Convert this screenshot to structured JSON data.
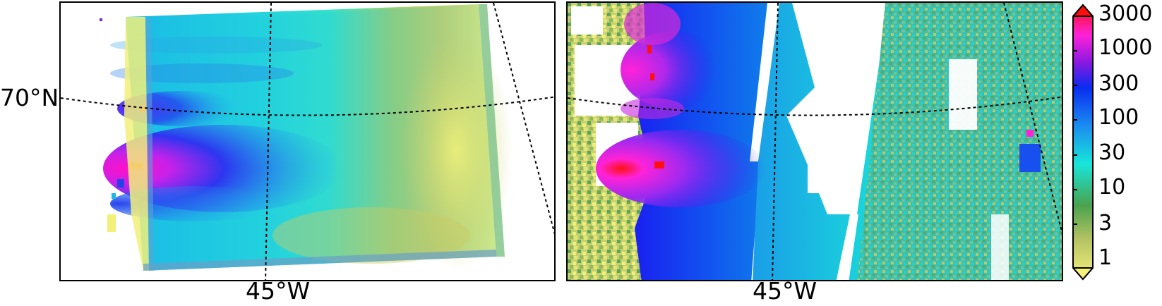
{
  "maps": [
    {
      "id": "left",
      "latitude_label": "70°N",
      "longitude_label": "45°W"
    },
    {
      "id": "right",
      "longitude_label": "45°W"
    }
  ],
  "colorbar": {
    "scale": "log",
    "range": [
      1,
      3000
    ],
    "extend": "both",
    "ticks": [
      "3000",
      "1000",
      "300",
      "100",
      "30",
      "10",
      "3",
      "1"
    ],
    "colors": {
      "low": "#f4f27a",
      "green": "#4aa24e",
      "cyan": "#18e6d9",
      "blue": "#0a2cf0",
      "purple": "#8a18e0",
      "magenta": "#ff22d8",
      "high": "#ff0d0d"
    }
  }
}
